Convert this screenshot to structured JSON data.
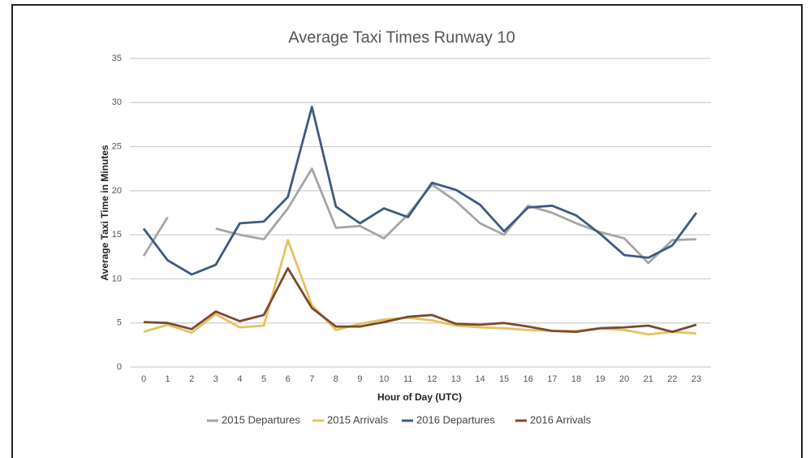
{
  "chart_data": {
    "type": "line",
    "title": "Average Taxi Times Runway 10",
    "x_label": "Hour of Day (UTC)",
    "y_label": "Average Taxi Time in Minutes",
    "categories": [
      "0",
      "1",
      "2",
      "3",
      "4",
      "5",
      "6",
      "7",
      "8",
      "9",
      "10",
      "11",
      "12",
      "13",
      "14",
      "15",
      "16",
      "17",
      "18",
      "19",
      "20",
      "21",
      "22",
      "23"
    ],
    "series": [
      {
        "name": "2015 Departures",
        "color": "#a6a6a6",
        "values": [
          12.6,
          17.0,
          null,
          15.7,
          15.0,
          14.5,
          18.0,
          22.5,
          15.8,
          16.0,
          14.6,
          17.3,
          20.7,
          18.8,
          16.3,
          15.0,
          18.3,
          17.5,
          16.3,
          15.3,
          14.6,
          11.8,
          14.4,
          14.5
        ]
      },
      {
        "name": "2015 Arrivals",
        "color": "#e3c262",
        "values": [
          4.0,
          4.8,
          3.9,
          6.0,
          4.5,
          4.7,
          14.4,
          7.0,
          4.2,
          4.9,
          5.4,
          5.6,
          5.3,
          4.7,
          4.5,
          4.4,
          4.2,
          4.1,
          4.1,
          4.4,
          4.2,
          3.7,
          4.0,
          3.8
        ]
      },
      {
        "name": "2016 Departures",
        "color": "#3e5a80",
        "values": [
          15.7,
          12.1,
          10.5,
          11.6,
          16.3,
          16.5,
          19.3,
          29.5,
          18.2,
          16.3,
          18.0,
          17.0,
          20.9,
          20.1,
          18.4,
          15.4,
          18.1,
          18.3,
          17.2,
          15.1,
          12.7,
          12.4,
          13.8,
          17.5
        ]
      },
      {
        "name": "2016 Arrivals",
        "color": "#7b4a2e",
        "values": [
          5.1,
          5.0,
          4.3,
          6.3,
          5.2,
          5.9,
          11.2,
          6.7,
          4.6,
          4.6,
          5.1,
          5.7,
          5.9,
          4.9,
          4.8,
          5.0,
          4.6,
          4.1,
          4.0,
          4.4,
          4.5,
          4.7,
          4.0,
          4.8
        ]
      }
    ],
    "ylim": [
      0,
      35
    ],
    "yticks": [
      0,
      5,
      10,
      15,
      20,
      25,
      30,
      35
    ],
    "grid": true,
    "legend": "bottom"
  }
}
